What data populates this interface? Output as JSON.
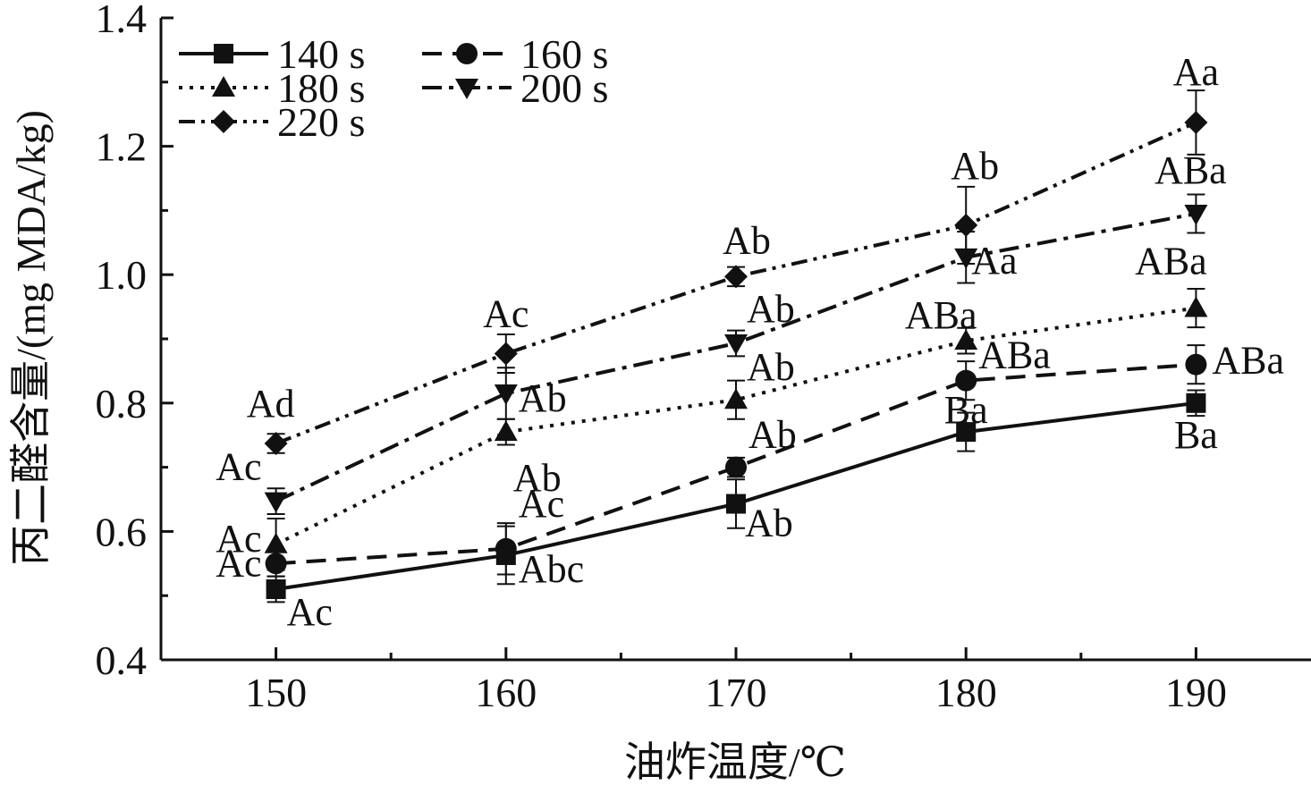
{
  "chart_data": {
    "type": "line",
    "xlabel": "油炸温度/℃",
    "ylabel": "丙二醛含量/(mg MDA/kg)",
    "x": [
      150,
      160,
      170,
      180,
      190
    ],
    "xlim": [
      145,
      195
    ],
    "ylim": [
      0.4,
      1.4
    ],
    "xticks": [
      "150",
      "160",
      "170",
      "180",
      "190"
    ],
    "yticks": [
      "0.4",
      "0.6",
      "0.8",
      "1.0",
      "1.2",
      "1.4"
    ],
    "grid": false,
    "legend_position": "top-left",
    "series": [
      {
        "name": "140 s",
        "marker": "square",
        "dash": "solid",
        "values": [
          0.51,
          0.563,
          0.643,
          0.755,
          0.8
        ],
        "errors": [
          0.02,
          0.045,
          0.038,
          0.03,
          0.02
        ],
        "labels": [
          "Ac",
          "Abc",
          "Ab",
          "Ba",
          "Ba"
        ]
      },
      {
        "name": "160 s",
        "marker": "circle",
        "dash": "dash",
        "values": [
          0.55,
          0.573,
          0.7,
          0.835,
          0.86
        ],
        "errors": [
          0.02,
          0.04,
          0.015,
          0.03,
          0.03
        ],
        "labels": [
          "Ac",
          "Ac",
          "Ab",
          "ABa",
          "ABa"
        ]
      },
      {
        "name": "180 s",
        "marker": "triangle-up",
        "dash": "dot",
        "values": [
          0.58,
          0.755,
          0.805,
          0.897,
          0.948
        ],
        "errors": [
          0.04,
          0.02,
          0.03,
          0.02,
          0.03
        ],
        "labels": [
          "Ac",
          "Ab",
          "Ab",
          "ABa",
          "ABa"
        ]
      },
      {
        "name": "200 s",
        "marker": "triangle-down",
        "dash": "dashdot",
        "values": [
          0.647,
          0.815,
          0.893,
          1.027,
          1.095
        ],
        "errors": [
          0.02,
          0.04,
          0.02,
          0.04,
          0.03
        ],
        "labels": [
          "Ac",
          "Ab",
          "Ab",
          "Aa",
          "ABa"
        ]
      },
      {
        "name": "220 s",
        "marker": "diamond",
        "dash": "dashdotdot",
        "values": [
          0.737,
          0.877,
          0.997,
          1.077,
          1.237
        ],
        "errors": [
          0.015,
          0.03,
          0.015,
          0.06,
          0.05
        ],
        "labels": [
          "Ad",
          "Ac",
          "Ab",
          "Ab",
          "Aa"
        ]
      }
    ]
  }
}
